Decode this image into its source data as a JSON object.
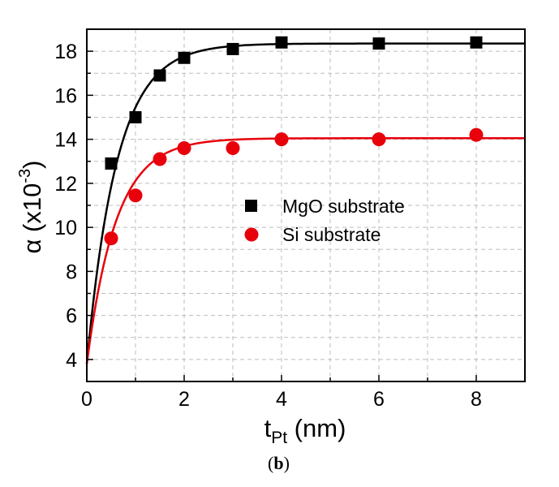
{
  "chart_data": {
    "type": "scatter",
    "xlabel": {
      "main": "t",
      "sub": "Pt",
      "unit": " (nm)"
    },
    "ylabel": {
      "main": "α (x10",
      "sup": "-3",
      "end": ")"
    },
    "xlim": [
      0,
      9
    ],
    "ylim": [
      3,
      19
    ],
    "xticks": [
      0,
      2,
      4,
      6,
      8
    ],
    "yticks": [
      4,
      6,
      8,
      10,
      12,
      14,
      16,
      18
    ],
    "grid": true,
    "legend_position": "center-right",
    "series": [
      {
        "name": "MgO substrate",
        "marker": "square",
        "color": "#000000",
        "x": [
          0.5,
          1,
          1.5,
          2,
          3,
          4,
          6,
          8
        ],
        "y": [
          12.9,
          15.0,
          16.9,
          17.7,
          18.1,
          18.4,
          18.35,
          18.4
        ],
        "fit": {
          "model": "exponential saturation",
          "y0": 3.8,
          "ymax": 18.35,
          "decay": 0.62
        }
      },
      {
        "name": "Si substrate",
        "marker": "circle",
        "color": "#e8000b",
        "x": [
          0.5,
          1,
          1.5,
          2,
          3,
          4,
          6,
          8
        ],
        "y": [
          9.5,
          11.45,
          13.1,
          13.6,
          13.6,
          14.0,
          14.0,
          14.2
        ],
        "fit": {
          "model": "exponential saturation",
          "y0": 3.8,
          "ymax": 14.05,
          "decay": 0.6
        }
      }
    ]
  },
  "caption": {
    "open": "(",
    "bold": "b",
    "close": ")"
  }
}
